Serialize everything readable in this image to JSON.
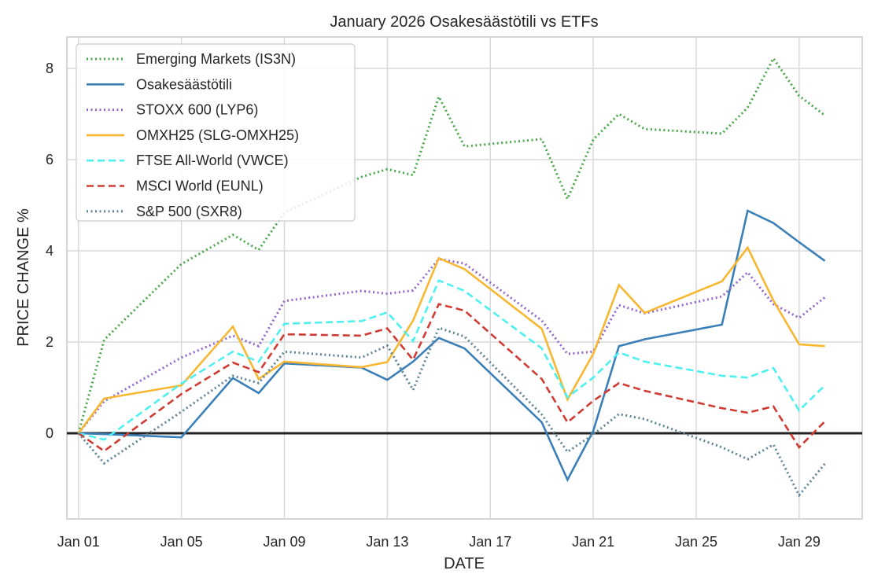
{
  "chart_data": {
    "type": "line",
    "title": "January 2026 Osakesäästötili vs ETFs",
    "xlabel": "DATE",
    "ylabel": "PRICE CHANGE %",
    "xlim_day": [
      0.55,
      31.45
    ],
    "ylim": [
      -1.88,
      8.69
    ],
    "grid": true,
    "legend_position": "top-left",
    "x_ticks": [
      {
        "day": 1,
        "label": "Jan 01"
      },
      {
        "day": 5,
        "label": "Jan 05"
      },
      {
        "day": 9,
        "label": "Jan 09"
      },
      {
        "day": 13,
        "label": "Jan 13"
      },
      {
        "day": 17,
        "label": "Jan 17"
      },
      {
        "day": 21,
        "label": "Jan 21"
      },
      {
        "day": 25,
        "label": "Jan 25"
      },
      {
        "day": 29,
        "label": "Jan 29"
      }
    ],
    "y_ticks": [
      0,
      2,
      4,
      6,
      8
    ],
    "reference_line": {
      "y": 0,
      "color": "#222222"
    },
    "x_days": [
      1,
      2,
      5,
      7,
      8,
      9,
      12,
      13,
      14,
      15,
      16,
      19,
      20,
      21,
      22,
      23,
      26,
      27,
      28,
      29,
      30
    ],
    "series": [
      {
        "name": "Emerging Markets (IS3N)",
        "color": "#4aa84a",
        "style": "dotted",
        "values": [
          0,
          2.05,
          3.71,
          4.35,
          4.02,
          4.84,
          5.62,
          5.79,
          5.66,
          7.38,
          6.29,
          6.45,
          5.14,
          6.44,
          7.0,
          6.67,
          6.57,
          7.14,
          8.22,
          7.4,
          6.97
        ]
      },
      {
        "name": "Osakesäästötili",
        "color": "#3a7fb8",
        "style": "solid",
        "values": [
          0,
          -0.02,
          -0.09,
          1.21,
          0.88,
          1.53,
          1.44,
          1.17,
          1.57,
          2.09,
          1.86,
          0.24,
          -1.02,
          0.05,
          1.91,
          2.06,
          2.38,
          4.88,
          4.61,
          4.19,
          3.78
        ]
      },
      {
        "name": "STOXX 600 (LYP6)",
        "color": "#9467cc",
        "style": "dotted",
        "values": [
          0,
          0.7,
          1.66,
          2.14,
          1.91,
          2.9,
          3.12,
          3.06,
          3.13,
          3.82,
          3.72,
          2.47,
          1.74,
          1.79,
          2.81,
          2.63,
          3.0,
          3.53,
          2.83,
          2.53,
          2.98
        ]
      },
      {
        "name": "OMXH25 (SLG-OMXH25)",
        "color": "#f7b731",
        "style": "solid",
        "values": [
          0,
          0.76,
          1.05,
          2.34,
          1.19,
          1.57,
          1.45,
          1.56,
          2.47,
          3.84,
          3.6,
          2.29,
          0.74,
          1.74,
          3.25,
          2.64,
          3.33,
          4.07,
          2.91,
          1.95,
          1.91
        ]
      },
      {
        "name": "FTSE All-World (VWCE)",
        "color": "#4ef0f0",
        "style": "dashed",
        "values": [
          0,
          -0.14,
          1.09,
          1.79,
          1.57,
          2.4,
          2.46,
          2.65,
          2.02,
          3.35,
          3.12,
          1.86,
          0.79,
          1.22,
          1.77,
          1.57,
          1.26,
          1.22,
          1.43,
          0.5,
          1.05
        ]
      },
      {
        "name": "MSCI World (EUNL)",
        "color": "#d03b33",
        "style": "dashed",
        "values": [
          0,
          -0.39,
          0.86,
          1.55,
          1.34,
          2.17,
          2.14,
          2.3,
          1.61,
          2.83,
          2.69,
          1.19,
          0.24,
          0.71,
          1.1,
          0.93,
          0.55,
          0.45,
          0.59,
          -0.31,
          0.26
        ]
      },
      {
        "name": "S&P 500 (SXR8)",
        "color": "#5f8497",
        "style": "dotted",
        "values": [
          0,
          -0.66,
          0.47,
          1.26,
          1.1,
          1.79,
          1.66,
          1.92,
          0.95,
          2.31,
          2.12,
          0.41,
          -0.41,
          -0.03,
          0.42,
          0.31,
          -0.31,
          -0.57,
          -0.25,
          -1.36,
          -0.67
        ]
      }
    ]
  }
}
